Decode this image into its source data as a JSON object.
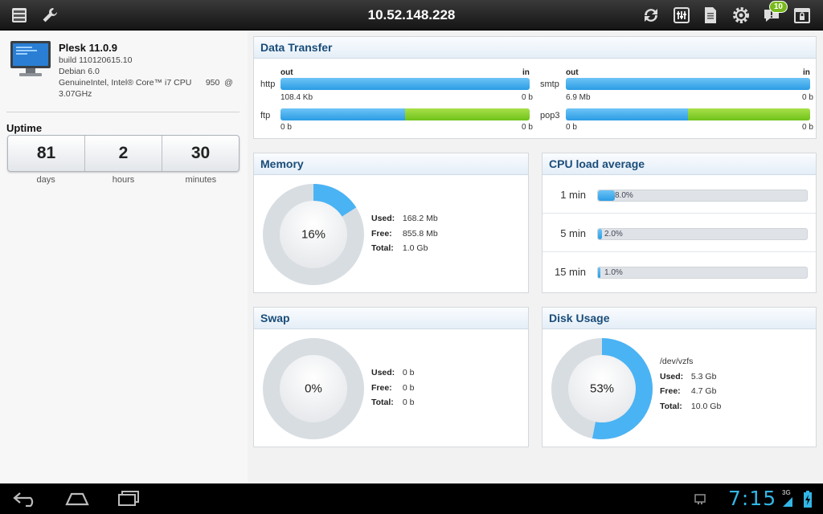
{
  "app": {
    "title": "10.52.148.228",
    "notifications_count": "10",
    "icons": [
      "server-list-icon",
      "wrench-icon",
      "refresh-icon",
      "equalizer-icon",
      "document-icon",
      "gear-icon",
      "notifications-icon",
      "lock-icon"
    ]
  },
  "server": {
    "name": "Plesk 11.0.9",
    "build": "build 110120615.10",
    "os": "Debian 6.0",
    "cpu": "GenuineIntel, Intel® Core™ i7 CPU      950  @ 3.07GHz"
  },
  "uptime": {
    "title": "Uptime",
    "days": "81",
    "hours": "2",
    "minutes": "30",
    "days_label": "days",
    "hours_label": "hours",
    "minutes_label": "minutes"
  },
  "data_transfer": {
    "title": "Data Transfer",
    "out_label": "out",
    "in_label": "in",
    "services": [
      {
        "name": "http",
        "out": "108.4 Kb",
        "in": "0 b",
        "out_fraction": 1.0
      },
      {
        "name": "smtp",
        "out": "6.9 Mb",
        "in": "0 b",
        "out_fraction": 1.0
      },
      {
        "name": "ftp",
        "out": "0 b",
        "in": "0 b",
        "out_fraction": 0.5
      },
      {
        "name": "pop3",
        "out": "0 b",
        "in": "0 b",
        "out_fraction": 0.5
      }
    ]
  },
  "memory": {
    "title": "Memory",
    "percent_label": "16%",
    "percent": 16,
    "used_key": "Used:",
    "used": "168.2 Mb",
    "free_key": "Free:",
    "free": "855.8 Mb",
    "total_key": "Total:",
    "total": "1.0 Gb"
  },
  "cpu": {
    "title": "CPU load average",
    "rows": [
      {
        "label": "1 min",
        "value": "8.0%",
        "fraction": 0.08
      },
      {
        "label": "5 min",
        "value": "2.0%",
        "fraction": 0.02
      },
      {
        "label": "15 min",
        "value": "1.0%",
        "fraction": 0.01
      }
    ]
  },
  "swap": {
    "title": "Swap",
    "percent_label": "0%",
    "percent": 0,
    "used_key": "Used:",
    "used": "0 b",
    "free_key": "Free:",
    "free": "0 b",
    "total_key": "Total:",
    "total": "0 b"
  },
  "disk": {
    "title": "Disk Usage",
    "percent_label": "53%",
    "percent": 53,
    "device": "/dev/vzfs",
    "used_key": "Used:",
    "used": "5.3 Gb",
    "free_key": "Free:",
    "free": "4.7 Gb",
    "total_key": "Total:",
    "total": "10.0 Gb"
  },
  "system": {
    "time": "7:15",
    "network": "3G"
  },
  "colors": {
    "accent_blue": "#2b9ce5",
    "accent_green": "#6fc21a",
    "ring_track": "#d8dde2",
    "panel_title": "#1a4d7a",
    "clock": "#33b5e5"
  }
}
